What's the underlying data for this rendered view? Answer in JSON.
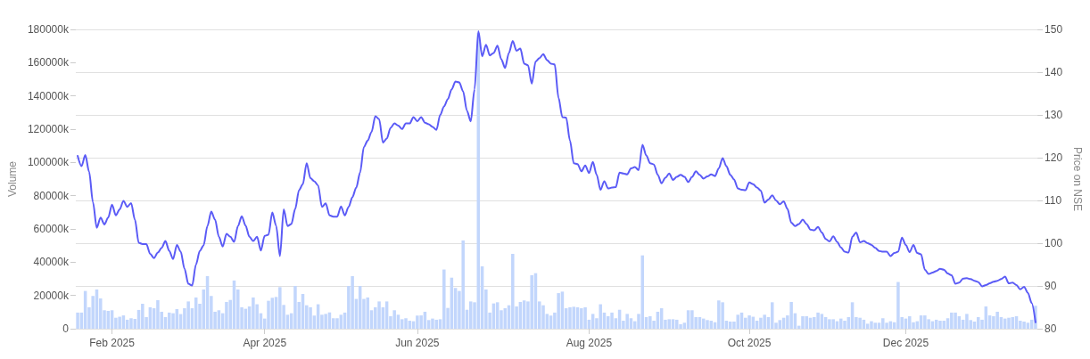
{
  "chart_data": {
    "type": "bar",
    "ylabel": "Volume",
    "y2label": "Price on NSE",
    "categories": [
      null,
      null,
      null,
      null,
      null,
      null,
      null,
      null,
      null,
      "Feb 2025",
      null,
      null,
      null,
      null,
      null,
      null,
      null,
      null,
      null,
      null,
      null,
      null,
      null,
      null,
      null,
      null,
      null,
      null,
      null,
      null,
      null,
      null,
      null,
      null,
      null,
      null,
      null,
      null,
      null,
      null,
      null,
      null,
      null,
      null,
      null,
      null,
      null,
      null,
      null,
      "Apr 2025",
      null,
      null,
      null,
      null,
      null,
      null,
      null,
      null,
      null,
      null,
      null,
      null,
      null,
      null,
      null,
      null,
      null,
      null,
      null,
      null,
      null,
      null,
      null,
      null,
      null,
      null,
      null,
      null,
      null,
      null,
      null,
      null,
      null,
      null,
      null,
      null,
      null,
      null,
      null,
      "Jun 2025",
      null,
      null,
      null,
      null,
      null,
      null,
      null,
      null,
      null,
      null,
      null,
      null,
      null,
      null,
      null,
      null,
      null,
      null,
      null,
      null,
      null,
      null,
      null,
      null,
      null,
      null,
      null,
      null,
      null,
      null,
      null,
      null,
      null,
      null,
      null,
      null,
      null,
      null,
      null,
      null,
      null,
      null,
      null,
      null,
      "Aug 2025",
      null,
      null,
      null,
      null,
      null,
      null,
      null,
      null,
      null,
      null,
      null,
      null,
      null,
      null,
      null,
      null,
      null,
      null,
      null,
      null,
      null,
      null,
      null,
      null,
      null,
      null,
      null,
      null,
      null,
      null,
      null,
      null,
      null,
      null,
      null,
      null,
      null,
      null,
      null,
      null,
      null,
      "Oct 2025",
      null,
      null,
      null,
      null,
      null,
      null,
      null,
      null,
      null,
      null,
      null,
      null,
      null,
      null,
      null,
      null,
      null,
      null,
      null,
      null,
      null,
      null,
      null,
      null,
      null,
      null,
      null,
      null,
      null,
      null,
      null,
      null,
      null,
      null,
      null,
      null,
      null,
      null,
      null,
      null,
      "Dec 2025",
      null,
      null,
      null,
      null,
      null,
      null,
      null,
      null,
      null,
      null,
      null,
      null,
      null,
      null,
      null,
      null,
      null,
      null,
      null,
      null,
      null,
      null,
      null,
      null,
      null,
      null,
      null,
      null,
      null,
      null,
      null,
      null,
      null,
      null
    ],
    "series": [
      {
        "color": "#c2d6fc",
        "values": [
          9700,
          9700,
          22700,
          12900,
          19700,
          23600,
          18200,
          11100,
          10700,
          11100,
          6600,
          7200,
          8000,
          5400,
          6300,
          5900,
          11300,
          15000,
          7000,
          12900,
          12300,
          17200,
          10200,
          7000,
          9700,
          9300,
          11800,
          8800,
          12300,
          16400,
          12300,
          18800,
          15000,
          23600,
          31600,
          19700,
          10200,
          11100,
          9300,
          16100,
          17300,
          29000,
          23600,
          12900,
          12000,
          13400,
          18800,
          14700,
          9300,
          6100,
          16800,
          18600,
          19100,
          25000,
          14300,
          8400,
          9300,
          25700,
          16100,
          20900,
          14100,
          12900,
          7900,
          14700,
          8400,
          8900,
          9800,
          6300,
          6300,
          8400,
          9700,
          25700,
          31600,
          17900,
          25700,
          17900,
          18800,
          11100,
          12900,
          16400,
          12900,
          16400,
          7500,
          11100,
          8400,
          5700,
          6300,
          4800,
          4500,
          7900,
          8000,
          10200,
          5200,
          6100,
          5400,
          5700,
          35600,
          12500,
          30700,
          24500,
          22700,
          53100,
          11400,
          16400,
          15900,
          178000,
          37500,
          23600,
          9700,
          15200,
          15900,
          11100,
          12300,
          14100,
          45000,
          13400,
          16100,
          17000,
          16400,
          32200,
          33400,
          16400,
          14100,
          8900,
          7900,
          9700,
          21400,
          22300,
          12300,
          12900,
          13200,
          12900,
          12300,
          12900,
          5400,
          8900,
          6300,
          14700,
          9700,
          7500,
          9700,
          6300,
          11400,
          4800,
          8900,
          6300,
          4500,
          8900,
          44100,
          7000,
          7500,
          4800,
          10200,
          12300,
          5400,
          5700,
          5700,
          5400,
          2700,
          3600,
          11100,
          11100,
          7000,
          7000,
          6100,
          5200,
          4800,
          3900,
          17000,
          15900,
          4800,
          4300,
          4300,
          8400,
          9700,
          6600,
          8000,
          7200,
          4800,
          6600,
          8400,
          7000,
          15900,
          3600,
          5200,
          6600,
          8000,
          16100,
          9300,
          1800,
          7500,
          7500,
          6600,
          7000,
          9700,
          8900,
          7000,
          5700,
          5700,
          4500,
          6100,
          4800,
          7000,
          15900,
          7000,
          6600,
          5400,
          3000,
          4500,
          3600,
          3600,
          6300,
          3600,
          4500,
          3900,
          28100,
          7000,
          6100,
          7500,
          3900,
          4500,
          8000,
          8000,
          5700,
          4500,
          5400,
          4800,
          4800,
          6300,
          9700,
          9700,
          7500,
          5400,
          8900,
          5200,
          4300,
          7000,
          5400,
          13400,
          8000,
          7500,
          10200,
          7000,
          6100,
          6600,
          7000,
          7500,
          4800,
          4300,
          3600,
          5400,
          13800
        ]
      },
      {
        "type": "line",
        "axis": "y2",
        "color": "#5b5bf6",
        "values": [
          120.4,
          118,
          120.6,
          116.7,
          109.6,
          103.6,
          106,
          104.4,
          106,
          109,
          106.5,
          107.9,
          109.9,
          108.5,
          109.4,
          105.5,
          100.1,
          99.8,
          99.8,
          97.5,
          96.5,
          97.8,
          98.9,
          100.5,
          98.2,
          96.3,
          99.6,
          98,
          94,
          90.5,
          90.1,
          95,
          98.2,
          99.5,
          104,
          107.4,
          105.5,
          101.5,
          99.2,
          102.2,
          101.5,
          100.3,
          104,
          106.3,
          104.1,
          101.5,
          100.5,
          101.5,
          98.3,
          101.7,
          102,
          107.2,
          104.1,
          97,
          107.9,
          104,
          104.5,
          108,
          112.4,
          113.8,
          118.7,
          115.2,
          114.5,
          113.5,
          108.5,
          109.3,
          106.5,
          106.2,
          106.2,
          108.6,
          106.5,
          108.5,
          110.8,
          113,
          116.5,
          122.5,
          124,
          126,
          129.7,
          129,
          123.5,
          124.5,
          127,
          128,
          127.5,
          126.7,
          128,
          128,
          129.5,
          128.5,
          129.5,
          128.2,
          127.8,
          127.2,
          126.5,
          130,
          132,
          133.7,
          136,
          137.8,
          137.6,
          135.5,
          131,
          128.5,
          136,
          149.6,
          143.7,
          146.4,
          143.9,
          144.5,
          146.2,
          143,
          141,
          144.5,
          147.3,
          145,
          145.5,
          142,
          141.6,
          137.3,
          142.5,
          143.3,
          144.2,
          142.8,
          142,
          141.8,
          134,
          129.5,
          129.4,
          124,
          118.7,
          118.5,
          116.8,
          118.2,
          116.4,
          119,
          116,
          112.5,
          114.5,
          112.8,
          113,
          113.1,
          116.5,
          116.3,
          116.1,
          117.5,
          117.8,
          117.1,
          123,
          120.5,
          118.7,
          118.4,
          116,
          114,
          115.3,
          116.3,
          114.8,
          115.5,
          116,
          115.5,
          114.3,
          115.5,
          116.8,
          116,
          115.1,
          115.6,
          116.1,
          115.7,
          117.5,
          119.9,
          118,
          116,
          114.9,
          112.8,
          112.5,
          112.4,
          114.2,
          113.8,
          113,
          112.3,
          109.5,
          110.2,
          111.2,
          110,
          109.1,
          109.8,
          108,
          104.8,
          104,
          104.5,
          105.5,
          104.5,
          103.2,
          103,
          103.8,
          102.5,
          101,
          100.4,
          101.6,
          100.3,
          99,
          98,
          97.8,
          101.5,
          102.5,
          100.2,
          100.5,
          100,
          99.6,
          98.9,
          98.2,
          98,
          98,
          97,
          97.7,
          98,
          101.3,
          99.6,
          97.9,
          99.6,
          97.7,
          97.4,
          93.8,
          92.8,
          93.1,
          93.5,
          94,
          93.8,
          92.9,
          92.5,
          90.5,
          90.8,
          91.7,
          91.8,
          91.6,
          91.2,
          90.9,
          89.9,
          90.2,
          90.6,
          91,
          91.2,
          91.6,
          92.2,
          90.6,
          90.8,
          90.2,
          89.2,
          89.8,
          88.4,
          86,
          81.5
        ]
      }
    ],
    "ylim": [
      0,
      180000
    ],
    "yticks": [
      0,
      {
        "value": 20000,
        "label": "20000k"
      },
      {
        "value": 40000,
        "label": "40000k"
      },
      {
        "value": 60000,
        "label": "60000k"
      },
      {
        "value": 80000,
        "label": "80000k"
      },
      {
        "value": 100000,
        "label": "100000k"
      },
      {
        "value": 120000,
        "label": "120000k"
      },
      {
        "value": 140000,
        "label": "140000k"
      },
      {
        "value": 160000,
        "label": "160000k"
      },
      {
        "value": 180000,
        "label": "180000k"
      }
    ],
    "y2lim": [
      80,
      150
    ],
    "y2ticks": [
      80,
      90,
      100,
      110,
      120,
      130,
      140,
      150
    ],
    "grid": "y2",
    "marker": "none",
    "line_style": "solid"
  }
}
